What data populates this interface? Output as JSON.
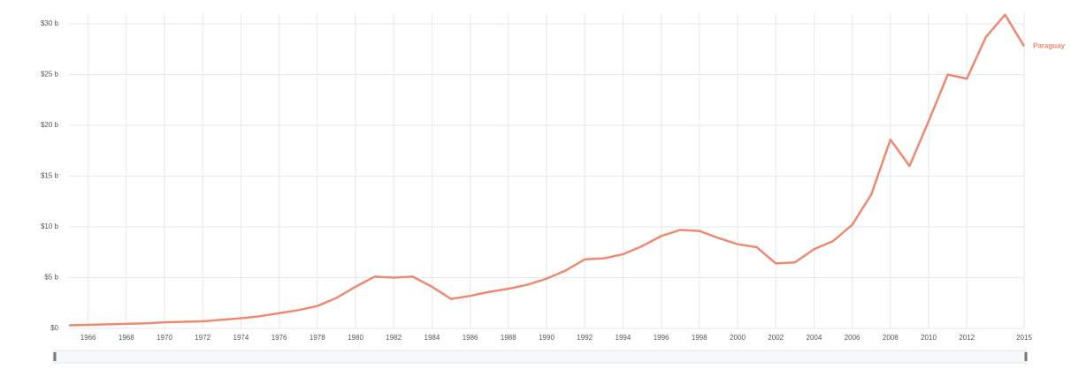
{
  "chart_data": {
    "type": "line",
    "x": [
      1965,
      1966,
      1967,
      1968,
      1969,
      1970,
      1971,
      1972,
      1973,
      1974,
      1975,
      1976,
      1977,
      1978,
      1979,
      1980,
      1981,
      1982,
      1983,
      1984,
      1985,
      1986,
      1987,
      1988,
      1989,
      1990,
      1991,
      1992,
      1993,
      1994,
      1995,
      1996,
      1997,
      1998,
      1999,
      2000,
      2001,
      2002,
      2003,
      2004,
      2005,
      2006,
      2007,
      2008,
      2009,
      2010,
      2011,
      2012,
      2013,
      2014,
      2015
    ],
    "series": [
      {
        "name": "Paraguay",
        "color": "#ec8a72",
        "values": [
          0.3,
          0.35,
          0.4,
          0.45,
          0.5,
          0.6,
          0.65,
          0.7,
          0.85,
          1.0,
          1.2,
          1.5,
          1.8,
          2.2,
          3.0,
          4.1,
          5.1,
          5.0,
          5.1,
          4.1,
          2.9,
          3.2,
          3.6,
          3.9,
          4.3,
          4.9,
          5.7,
          6.8,
          6.9,
          7.3,
          8.1,
          9.1,
          9.7,
          9.6,
          8.9,
          8.3,
          8.0,
          6.4,
          6.5,
          7.8,
          8.6,
          10.2,
          13.2,
          18.6,
          16.0,
          20.4,
          25.0,
          24.6,
          28.7,
          30.9,
          27.8
        ]
      }
    ],
    "xlim": [
      1965,
      2015
    ],
    "xticks": [
      1966,
      1968,
      1970,
      1972,
      1974,
      1976,
      1978,
      1980,
      1982,
      1984,
      1986,
      1988,
      1990,
      1992,
      1994,
      1996,
      1998,
      2000,
      2002,
      2004,
      2006,
      2008,
      2010,
      2012,
      2015
    ],
    "ylim": [
      0,
      30
    ],
    "yticks": [
      {
        "value": 0,
        "label": "$0"
      },
      {
        "value": 5,
        "label": "$5 b"
      },
      {
        "value": 10,
        "label": "$10 b"
      },
      {
        "value": 15,
        "label": "$15 b"
      },
      {
        "value": 20,
        "label": "$20 b"
      },
      {
        "value": 25,
        "label": "$25 b"
      },
      {
        "value": 30,
        "label": "$30 b"
      }
    ],
    "grid": true
  }
}
